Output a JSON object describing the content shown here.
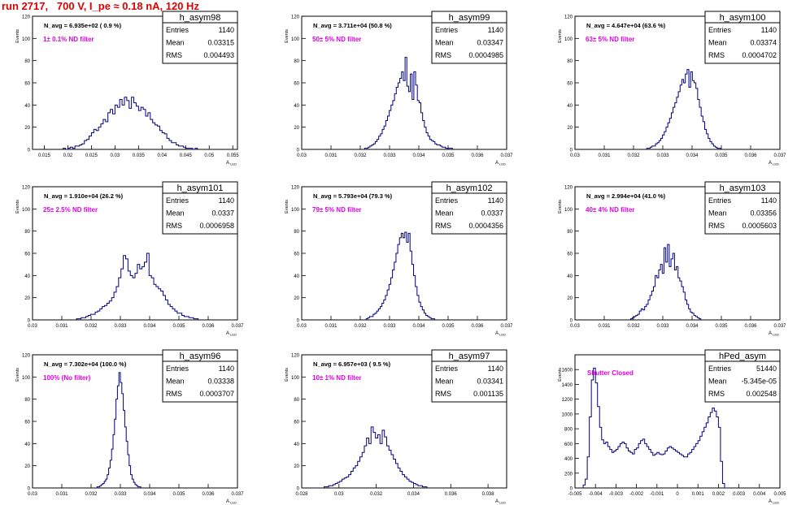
{
  "title": "run 2717,   700 V, I_pe ≈ 0.18 nA, 120 Hz",
  "colors": {
    "hist": "#000080",
    "title": "#e00000",
    "note": "#e000e0",
    "frame": "#000000"
  },
  "yaxis_title": "Events",
  "xaxis_title": "A",
  "xaxis_sub": "LED",
  "stats_labels": {
    "entries": "Entries",
    "mean": "Mean",
    "rms": "RMS"
  },
  "chart_data": [
    {
      "type": "bar",
      "name": "h_asym98",
      "navg": "N_avg = 6.935e+02 ( 0.9 %)",
      "note": "1± 0.1% ND filter",
      "stats": {
        "entries": "1140",
        "mean": "0.03315",
        "rms": "0.004493"
      },
      "xlim": [
        0.0125,
        0.056
      ],
      "ylim": [
        0,
        120
      ],
      "xticks": [
        "0.015",
        "0.02",
        "0.025",
        "0.03",
        "0.035",
        "0.04",
        "0.045",
        "0.05",
        "0.055"
      ],
      "yticks": [
        "0",
        "20",
        "40",
        "60",
        "80",
        "100",
        "120"
      ],
      "bins": {
        "start": 0.019,
        "width": 0.0005,
        "values": [
          1,
          0,
          1,
          2,
          1,
          3,
          3,
          4,
          5,
          8,
          9,
          12,
          15,
          18,
          17,
          20,
          23,
          27,
          25,
          33,
          36,
          32,
          40,
          38,
          45,
          40,
          47,
          44,
          37,
          47,
          42,
          39,
          35,
          38,
          36,
          30,
          33,
          27,
          24,
          22,
          21,
          17,
          15,
          14,
          10,
          8,
          6,
          6,
          4,
          3,
          3,
          2,
          1,
          1,
          1,
          0,
          1
        ]
      }
    },
    {
      "type": "bar",
      "name": "h_asym99",
      "navg": "N_avg = 3.711e+04 (50.8 %)",
      "note": "50± 5% ND filter",
      "stats": {
        "entries": "1140",
        "mean": "0.03347",
        "rms": "0.0004985"
      },
      "xlim": [
        0.03,
        0.037
      ],
      "ylim": [
        0,
        120
      ],
      "xticks": [
        "0.03",
        "0.031",
        "0.032",
        "0.033",
        "0.034",
        "0.035",
        "0.036",
        "0.037"
      ],
      "yticks": [
        "0",
        "20",
        "40",
        "60",
        "80",
        "100",
        "120"
      ],
      "bins": {
        "start": 0.03215,
        "width": 6e-05,
        "values": [
          1,
          1,
          2,
          3,
          4,
          5,
          7,
          9,
          12,
          14,
          18,
          21,
          26,
          30,
          35,
          40,
          44,
          50,
          56,
          60,
          64,
          70,
          62,
          83,
          57,
          52,
          68,
          45,
          70,
          58,
          44,
          42,
          33,
          26,
          20,
          15,
          12,
          9,
          8,
          7,
          5,
          4,
          4,
          3,
          2,
          2,
          1,
          1,
          1,
          1
        ]
      }
    },
    {
      "type": "bar",
      "name": "h_asym100",
      "navg": "N_avg = 4.647e+04 (63.6 %)",
      "note": "63± 5% ND filter",
      "stats": {
        "entries": "1140",
        "mean": "0.03374",
        "rms": "0.0004702"
      },
      "xlim": [
        0.03,
        0.037
      ],
      "ylim": [
        0,
        120
      ],
      "xticks": [
        "0.03",
        "0.031",
        "0.032",
        "0.033",
        "0.034",
        "0.035",
        "0.036",
        "0.037"
      ],
      "yticks": [
        "0",
        "20",
        "40",
        "60",
        "80",
        "100",
        "120"
      ],
      "bins": {
        "start": 0.03245,
        "width": 6e-05,
        "values": [
          1,
          1,
          2,
          3,
          3,
          5,
          6,
          8,
          10,
          13,
          16,
          20,
          24,
          28,
          33,
          38,
          42,
          47,
          52,
          58,
          63,
          60,
          68,
          72,
          56,
          70,
          62,
          60,
          55,
          45,
          38,
          30,
          25,
          18,
          14,
          10,
          7,
          5,
          3,
          2,
          1,
          1
        ]
      }
    },
    {
      "type": "bar",
      "name": "h_asym101",
      "navg": "N_avg = 1.910e+04 (26.2 %)",
      "note": "25± 2.5% ND filter",
      "stats": {
        "entries": "1140",
        "mean": "0.0337",
        "rms": "0.0006958"
      },
      "xlim": [
        0.03,
        0.037
      ],
      "ylim": [
        0,
        120
      ],
      "xticks": [
        "0.03",
        "0.031",
        "0.032",
        "0.033",
        "0.034",
        "0.035",
        "0.036",
        "0.037"
      ],
      "yticks": [
        "0",
        "20",
        "40",
        "60",
        "80",
        "100",
        "120"
      ],
      "bins": {
        "start": 0.0315,
        "width": 8e-05,
        "values": [
          1,
          1,
          2,
          2,
          3,
          4,
          5,
          5,
          7,
          8,
          10,
          12,
          13,
          15,
          17,
          20,
          25,
          30,
          38,
          46,
          58,
          55,
          44,
          40,
          38,
          42,
          50,
          46,
          48,
          52,
          60,
          40,
          38,
          32,
          30,
          28,
          26,
          22,
          18,
          14,
          12,
          10,
          8,
          6,
          6,
          4,
          3,
          3,
          2,
          2,
          1,
          1
        ]
      }
    },
    {
      "type": "bar",
      "name": "h_asym102",
      "navg": "N_avg = 5.793e+04 (79.3 %)",
      "note": "79± 5% ND filter",
      "stats": {
        "entries": "1140",
        "mean": "0.0337",
        "rms": "0.0004356"
      },
      "xlim": [
        0.03,
        0.037
      ],
      "ylim": [
        0,
        120
      ],
      "xticks": [
        "0.03",
        "0.031",
        "0.032",
        "0.033",
        "0.034",
        "0.035",
        "0.036",
        "0.037"
      ],
      "yticks": [
        "0",
        "20",
        "40",
        "60",
        "80",
        "100",
        "120"
      ],
      "bins": {
        "start": 0.0322,
        "width": 6e-05,
        "values": [
          1,
          2,
          3,
          3,
          5,
          6,
          8,
          10,
          12,
          15,
          18,
          22,
          27,
          32,
          38,
          45,
          52,
          60,
          68,
          74,
          78,
          74,
          79,
          70,
          78,
          62,
          50,
          40,
          30,
          22,
          16,
          12,
          9,
          6,
          4,
          3,
          2,
          1,
          1
        ]
      }
    },
    {
      "type": "bar",
      "name": "h_asym103",
      "navg": "N_avg = 2.994e+04 (41.0 %)",
      "note": "40± 4% ND filter",
      "stats": {
        "entries": "1140",
        "mean": "0.03356",
        "rms": "0.0005603"
      },
      "xlim": [
        0.03,
        0.037
      ],
      "ylim": [
        0,
        120
      ],
      "xticks": [
        "0.03",
        "0.031",
        "0.032",
        "0.033",
        "0.034",
        "0.035",
        "0.036",
        "0.037"
      ],
      "yticks": [
        "0",
        "20",
        "40",
        "60",
        "80",
        "100",
        "120"
      ],
      "bins": {
        "start": 0.0319,
        "width": 6e-05,
        "values": [
          1,
          2,
          3,
          4,
          5,
          8,
          10,
          9,
          12,
          14,
          18,
          22,
          26,
          30,
          40,
          38,
          45,
          50,
          42,
          65,
          52,
          68,
          48,
          55,
          60,
          45,
          48,
          38,
          35,
          30,
          25,
          18,
          14,
          10,
          7,
          6,
          4,
          3,
          2,
          1
        ]
      }
    },
    {
      "type": "bar",
      "name": "h_asym96",
      "navg": "N_avg = 7.302e+04 (100.0 %)",
      "note": "100% (No filter)",
      "stats": {
        "entries": "1140",
        "mean": "0.03338",
        "rms": "0.0003707"
      },
      "xlim": [
        0.03,
        0.037
      ],
      "ylim": [
        0,
        120
      ],
      "xticks": [
        "0.03",
        "0.031",
        "0.032",
        "0.033",
        "0.034",
        "0.035",
        "0.036",
        "0.037"
      ],
      "yticks": [
        "0",
        "20",
        "40",
        "60",
        "80",
        "100",
        "120"
      ],
      "bins": {
        "start": 0.0322,
        "width": 5e-05,
        "values": [
          1,
          1,
          2,
          3,
          4,
          6,
          8,
          12,
          18,
          25,
          35,
          48,
          62,
          80,
          92,
          104,
          95,
          85,
          70,
          55,
          42,
          30,
          20,
          12,
          8,
          5,
          3,
          2,
          1,
          1
        ]
      }
    },
    {
      "type": "bar",
      "name": "h_asym97",
      "navg": "N_avg = 6.957e+03 ( 9.5 %)",
      "note": "10± 1% ND filter",
      "stats": {
        "entries": "1140",
        "mean": "0.03341",
        "rms": "0.001135"
      },
      "xlim": [
        0.028,
        0.039
      ],
      "ylim": [
        0,
        120
      ],
      "xticks": [
        "0.028",
        "0.03",
        "0.032",
        "0.034",
        "0.036",
        "0.038"
      ],
      "yticks": [
        "0",
        "20",
        "40",
        "60",
        "80",
        "100",
        "120"
      ],
      "bins": {
        "start": 0.0292,
        "width": 0.00012,
        "values": [
          1,
          1,
          2,
          2,
          3,
          4,
          5,
          6,
          8,
          9,
          10,
          12,
          15,
          18,
          20,
          24,
          28,
          32,
          38,
          45,
          40,
          55,
          50,
          45,
          48,
          40,
          52,
          46,
          38,
          34,
          30,
          26,
          22,
          18,
          15,
          12,
          10,
          8,
          6,
          5,
          4,
          3,
          2,
          2,
          1,
          1
        ]
      }
    },
    {
      "type": "bar",
      "name": "hPed_asym",
      "navg": "",
      "note": "Shutter Closed",
      "stats": {
        "entries": "51440",
        "mean": "-5.345e-05",
        "rms": "0.002548"
      },
      "xlim": [
        -0.005,
        0.005
      ],
      "ylim": [
        0,
        1800
      ],
      "xticks": [
        "-0.005",
        "-0.004",
        "-0.003",
        "-0.002",
        "-0.001",
        "0",
        "0.001",
        "0.002",
        "0.003",
        "0.004",
        "0.005"
      ],
      "yticks": [
        "0",
        "200",
        "400",
        "600",
        "800",
        "1000",
        "1200",
        "1400",
        "1600"
      ],
      "bins": {
        "start": -0.0046,
        "width": 0.0001,
        "values": [
          40,
          120,
          420,
          960,
          1460,
          1620,
          1420,
          1100,
          820,
          650,
          600,
          620,
          560,
          520,
          480,
          500,
          520,
          560,
          600,
          620,
          600,
          540,
          500,
          480,
          460,
          520,
          540,
          600,
          640,
          660,
          600,
          560,
          520,
          480,
          440,
          460,
          480,
          460,
          450,
          460,
          500,
          540,
          560,
          540,
          520,
          500,
          480,
          460,
          440,
          420,
          420,
          460,
          480,
          520,
          560,
          600,
          640,
          700,
          760,
          820,
          880,
          960,
          1020,
          1080,
          1040,
          960,
          820,
          360,
          60,
          0
        ]
      }
    }
  ]
}
